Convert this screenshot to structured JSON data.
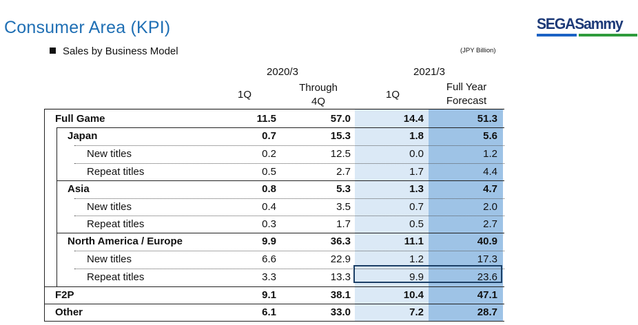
{
  "title": "Consumer Area (KPI)",
  "logo": {
    "text": "SEGASammy",
    "blue": "#1b62c4",
    "green": "#2e9b3c"
  },
  "section": "Sales by Business Model",
  "unit": "(JPY Billion)",
  "headers": {
    "group1": "2020/3",
    "group2": "2021/3",
    "col1": "1Q",
    "col2_line1": "Through",
    "col2_line2": "4Q",
    "col3": "1Q",
    "col4_line1": "Full Year",
    "col4_line2": "Forecast"
  },
  "rows": [
    {
      "label": "Full Game",
      "v": [
        "11.5",
        "57.0",
        "14.4",
        "51.3"
      ]
    },
    {
      "label": "Japan",
      "v": [
        "0.7",
        "15.3",
        "1.8",
        "5.6"
      ]
    },
    {
      "label": "New titles",
      "v": [
        "0.2",
        "12.5",
        "0.0",
        "1.2"
      ]
    },
    {
      "label": "Repeat titles",
      "v": [
        "0.5",
        "2.7",
        "1.7",
        "4.4"
      ]
    },
    {
      "label": "Asia",
      "v": [
        "0.8",
        "5.3",
        "1.3",
        "4.7"
      ]
    },
    {
      "label": "New titles",
      "v": [
        "0.4",
        "3.5",
        "0.7",
        "2.0"
      ]
    },
    {
      "label": "Repeat titles",
      "v": [
        "0.3",
        "1.7",
        "0.5",
        "2.7"
      ]
    },
    {
      "label": "North America / Europe",
      "v": [
        "9.9",
        "36.3",
        "11.1",
        "40.9"
      ]
    },
    {
      "label": "New titles",
      "v": [
        "6.6",
        "22.9",
        "1.2",
        "17.3"
      ]
    },
    {
      "label": "Repeat titles",
      "v": [
        "3.3",
        "13.3",
        "9.9",
        "23.6"
      ]
    },
    {
      "label": "F2P",
      "v": [
        "9.1",
        "38.1",
        "10.4",
        "47.1"
      ]
    },
    {
      "label": "Other",
      "v": [
        "6.1",
        "33.0",
        "7.2",
        "28.7"
      ]
    }
  ]
}
